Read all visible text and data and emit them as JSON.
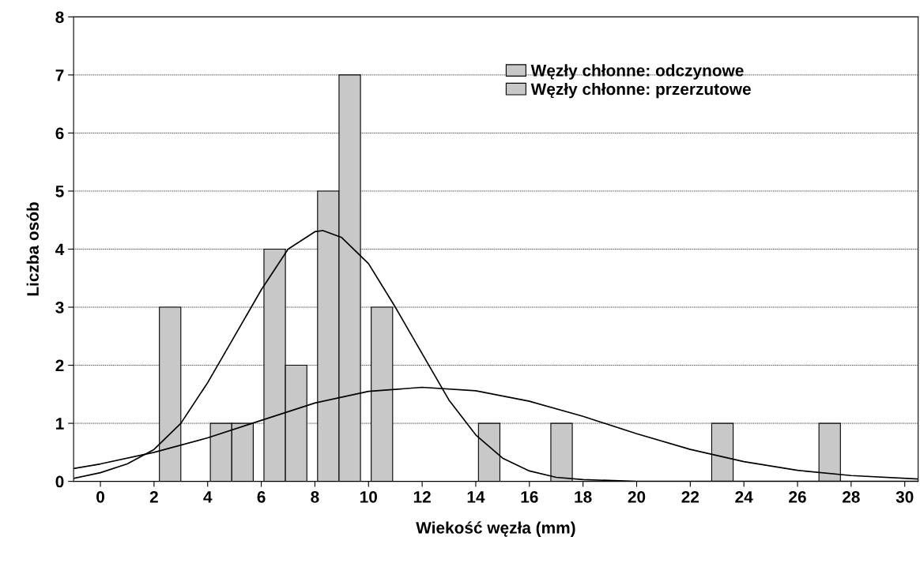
{
  "chart_data": {
    "type": "bar",
    "xlabel": "Wiekość węzła (mm)",
    "ylabel": "Liczba osób",
    "xlim": [
      -1,
      30.5
    ],
    "xticks": [
      0,
      2,
      4,
      6,
      8,
      10,
      12,
      14,
      16,
      18,
      20,
      22,
      24,
      26,
      28,
      30
    ],
    "ylim": [
      0,
      8
    ],
    "yticks": [
      0,
      1,
      2,
      3,
      4,
      5,
      6,
      7,
      8
    ],
    "grid": "y",
    "legend": "top right",
    "series": [
      {
        "name": "Węzły chłonne: odczynowe",
        "color": "#c8c8c8",
        "x": [
          2.6,
          4.5,
          6.5,
          8.5,
          10.5,
          14.5
        ],
        "values": [
          3,
          1,
          4,
          5,
          3,
          1
        ]
      },
      {
        "name": "Węzły chłonne: przerzutowe",
        "color": "#c8c8c8",
        "x": [
          5.3,
          7.3,
          9.3,
          17.2,
          23.2,
          27.2
        ],
        "values": [
          1,
          2,
          7,
          1,
          1,
          1
        ]
      },
      {
        "type": "line",
        "color": "#000000",
        "x": [
          -1,
          0,
          1,
          2,
          3,
          4,
          5,
          6,
          7,
          8,
          8.3,
          9,
          10,
          11,
          12,
          13,
          14,
          15,
          16,
          17,
          18,
          20,
          30.5
        ],
        "values": [
          0.05,
          0.15,
          0.3,
          0.55,
          1.0,
          1.7,
          2.5,
          3.3,
          4.0,
          4.3,
          4.32,
          4.2,
          3.75,
          3.0,
          2.2,
          1.4,
          0.8,
          0.4,
          0.18,
          0.07,
          0.03,
          0,
          0
        ]
      },
      {
        "type": "line",
        "color": "#000000",
        "x": [
          -1,
          0,
          2,
          4,
          6,
          8,
          10,
          12,
          14,
          16,
          18,
          20,
          22,
          24,
          26,
          28,
          30.5
        ],
        "values": [
          0.22,
          0.3,
          0.5,
          0.75,
          1.05,
          1.35,
          1.55,
          1.62,
          1.56,
          1.38,
          1.12,
          0.82,
          0.55,
          0.34,
          0.19,
          0.1,
          0.04
        ]
      }
    ]
  }
}
